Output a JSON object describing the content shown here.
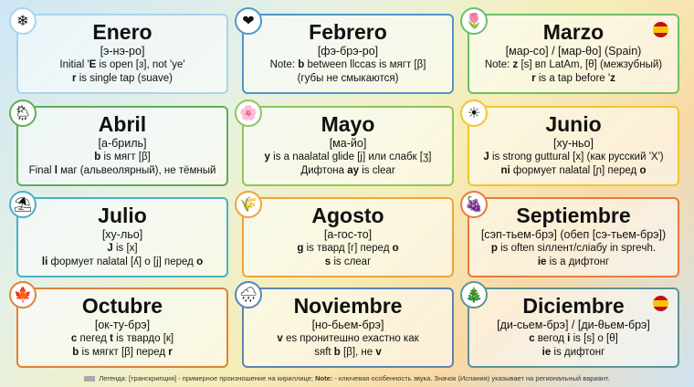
{
  "months": [
    {
      "title": "Enero",
      "pron": "[э-нэ-ро]",
      "icon": "snowflake-icon",
      "glyph": "❄",
      "color": "#a9d4ee",
      "flag": false,
      "lines": [
        [
          {
            "t": "Initial '"
          },
          {
            "t": "E",
            "b": true
          },
          {
            "t": " is open [ɜ], not 'ye'"
          }
        ],
        [
          {
            "t": "r",
            "b": true
          },
          {
            "t": " is single tap (suave)"
          }
        ]
      ]
    },
    {
      "title": "Febrero",
      "pron": "[фэ-брэ-ро]",
      "icon": "heart-icon",
      "glyph": "❤",
      "color": "#4f97c9",
      "flag": false,
      "lines": [
        [
          {
            "t": "Note: "
          },
          {
            "t": "b",
            "b": true
          },
          {
            "t": " between llccas is мягт [β]"
          }
        ],
        [
          {
            "t": "(губы не смыкаются)"
          }
        ]
      ]
    },
    {
      "title": "Marzo",
      "pron": "[мар-со] / [мар-θо] (Spain)",
      "icon": "tulip-icon",
      "glyph": "🌷",
      "color": "#6bbf6b",
      "flag": true,
      "lines": [
        [
          {
            "t": "Note: "
          },
          {
            "t": "z",
            "b": true
          },
          {
            "t": " [s] вп LatAm, [θ] (межзубный)"
          }
        ],
        [
          {
            "t": "r",
            "b": true
          },
          {
            "t": " is a tap before '"
          },
          {
            "t": "z",
            "b": true
          }
        ]
      ]
    },
    {
      "title": "Abril",
      "pron": "[а-бриль]",
      "icon": "cloud-sun-rain-icon",
      "glyph": "🌦",
      "color": "#5fae55",
      "flag": false,
      "lines": [
        [
          {
            "t": "b",
            "b": true
          },
          {
            "t": " is мягт [β]"
          }
        ],
        [
          {
            "t": "Final "
          },
          {
            "t": "l",
            "b": true
          },
          {
            "t": " маг (альвеолярный), не тёмный"
          }
        ]
      ]
    },
    {
      "title": "Mayo",
      "pron": "[ма-йо]",
      "icon": "flower-icon",
      "glyph": "🌸",
      "color": "#8cc75a",
      "flag": false,
      "lines": [
        [
          {
            "t": "y",
            "b": true
          },
          {
            "t": " is a naalatal glide [j] или слабк [ʒ]"
          }
        ],
        [
          {
            "t": "Дифтона "
          },
          {
            "t": "ay",
            "b": true
          },
          {
            "t": " is clear"
          }
        ]
      ]
    },
    {
      "title": "Junio",
      "pron": "[ху-ньо]",
      "icon": "sun-icon",
      "glyph": "☀",
      "color": "#f2c531",
      "flag": false,
      "lines": [
        [
          {
            "t": "J",
            "b": true
          },
          {
            "t": " is strong guttural [x] (как русский 'X')"
          }
        ],
        [
          {
            "t": "ni",
            "b": true
          },
          {
            "t": " формует nalatal [ɲ] перед "
          },
          {
            "t": "o",
            "b": true
          }
        ]
      ]
    },
    {
      "title": "Julio",
      "pron": "[ху-льо]",
      "icon": "beach-umbrella-icon",
      "glyph": "⛱",
      "color": "#4ab0c6",
      "flag": false,
      "lines": [
        [
          {
            "t": "J",
            "b": true
          },
          {
            "t": " is [x]"
          }
        ],
        [
          {
            "t": "li",
            "b": true
          },
          {
            "t": " формует nalatal [ʎ] о [j] перед "
          },
          {
            "t": "o",
            "b": true
          }
        ]
      ]
    },
    {
      "title": "Agosto",
      "pron": "[а-гос-то]",
      "icon": "wheat-icon",
      "glyph": "🌾",
      "color": "#f0a33a",
      "flag": false,
      "lines": [
        [
          {
            "t": "g",
            "b": true
          },
          {
            "t": " is твард [г] перед "
          },
          {
            "t": "o",
            "b": true
          }
        ],
        [
          {
            "t": "s",
            "b": true
          },
          {
            "t": " is слеаг"
          }
        ]
      ]
    },
    {
      "title": "Septiembre",
      "pron": "[сэп-тьем-брэ] (обеп [сэ-тьем-брэ])",
      "icon": "grapes-icon",
      "glyph": "🍇",
      "color": "#e87a3c",
      "flag": false,
      "lines": [
        [
          {
            "t": "p",
            "b": true
          },
          {
            "t": " is often sіллент/сліабу in spreчh."
          }
        ],
        [
          {
            "t": "ie",
            "b": true
          },
          {
            "t": " is a дифтонг"
          }
        ]
      ]
    },
    {
      "title": "Octubre",
      "pron": "[ок-ту-брэ]",
      "icon": "maple-leaf-icon",
      "glyph": "🍁",
      "color": "#e0813a",
      "flag": false,
      "lines": [
        [
          {
            "t": "c",
            "b": true
          },
          {
            "t": " пегед "
          },
          {
            "t": "t",
            "b": true
          },
          {
            "t": " is твардо [к]"
          }
        ],
        [
          {
            "t": "b",
            "b": true
          },
          {
            "t": " is мягкт [β] перед "
          },
          {
            "t": "r",
            "b": true
          }
        ]
      ]
    },
    {
      "title": "Noviembre",
      "pron": "[но-бьем-брэ]",
      "icon": "cloud-rain-icon",
      "glyph": "🌧",
      "color": "#5c84b3",
      "flag": false,
      "lines": [
        [
          {
            "t": "v",
            "b": true
          },
          {
            "t": " es пронитешно ехастно как"
          }
        ],
        [
          {
            "t": "sяft "
          },
          {
            "t": "b",
            "b": true
          },
          {
            "t": " [β], не "
          },
          {
            "t": "v",
            "b": true
          }
        ]
      ]
    },
    {
      "title": "Diciembre",
      "pron": "[ди-сьем-брэ] / [ди-θьем-брэ]",
      "icon": "christmas-tree-icon",
      "glyph": "🎄",
      "color": "#5d9494",
      "flag": true,
      "lines": [
        [
          {
            "t": "c",
            "b": true
          },
          {
            "t": " вегод "
          },
          {
            "t": "i",
            "b": true
          },
          {
            "t": " is [s] о [θ]"
          }
        ],
        [
          {
            "t": "ie",
            "b": true
          },
          {
            "t": " is дифтонг"
          }
        ]
      ]
    }
  ],
  "footer": {
    "a": "Легенда: [транскрипция] - примерное произношение на кириллице; ",
    "b": "Note:",
    "c": " - ключевая особенность звука. Значок (Испания) указывает на региональный вариант."
  }
}
